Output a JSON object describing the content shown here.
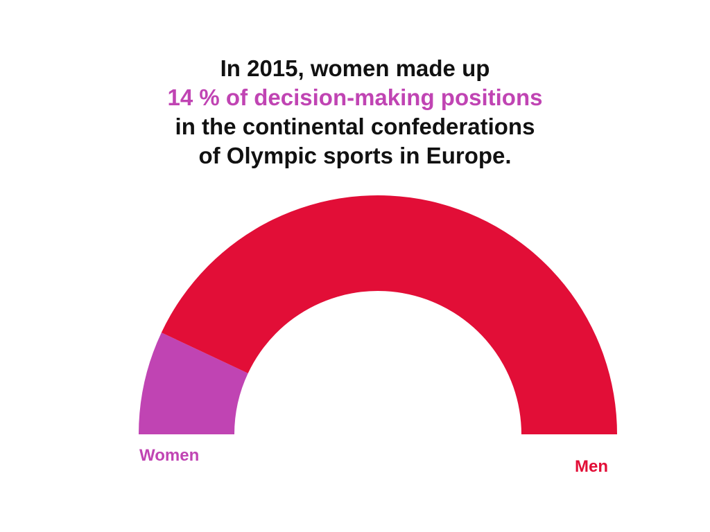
{
  "title": {
    "line1": "In 2015, women made up",
    "line2": "14 % of decision-making positions",
    "line3": "in the continental confederations",
    "line4": "of Olympic sports in Europe."
  },
  "colors": {
    "text": "#111111",
    "women": "#c044b3",
    "men": "#e20e37"
  },
  "chart_data": {
    "type": "pie",
    "variant": "half-donut",
    "series": [
      {
        "name": "Women",
        "value": 14,
        "color": "#c044b3"
      },
      {
        "name": "Men",
        "value": 86,
        "color": "#e20e37"
      }
    ]
  },
  "labels": {
    "women": "Women",
    "men": "Men"
  }
}
